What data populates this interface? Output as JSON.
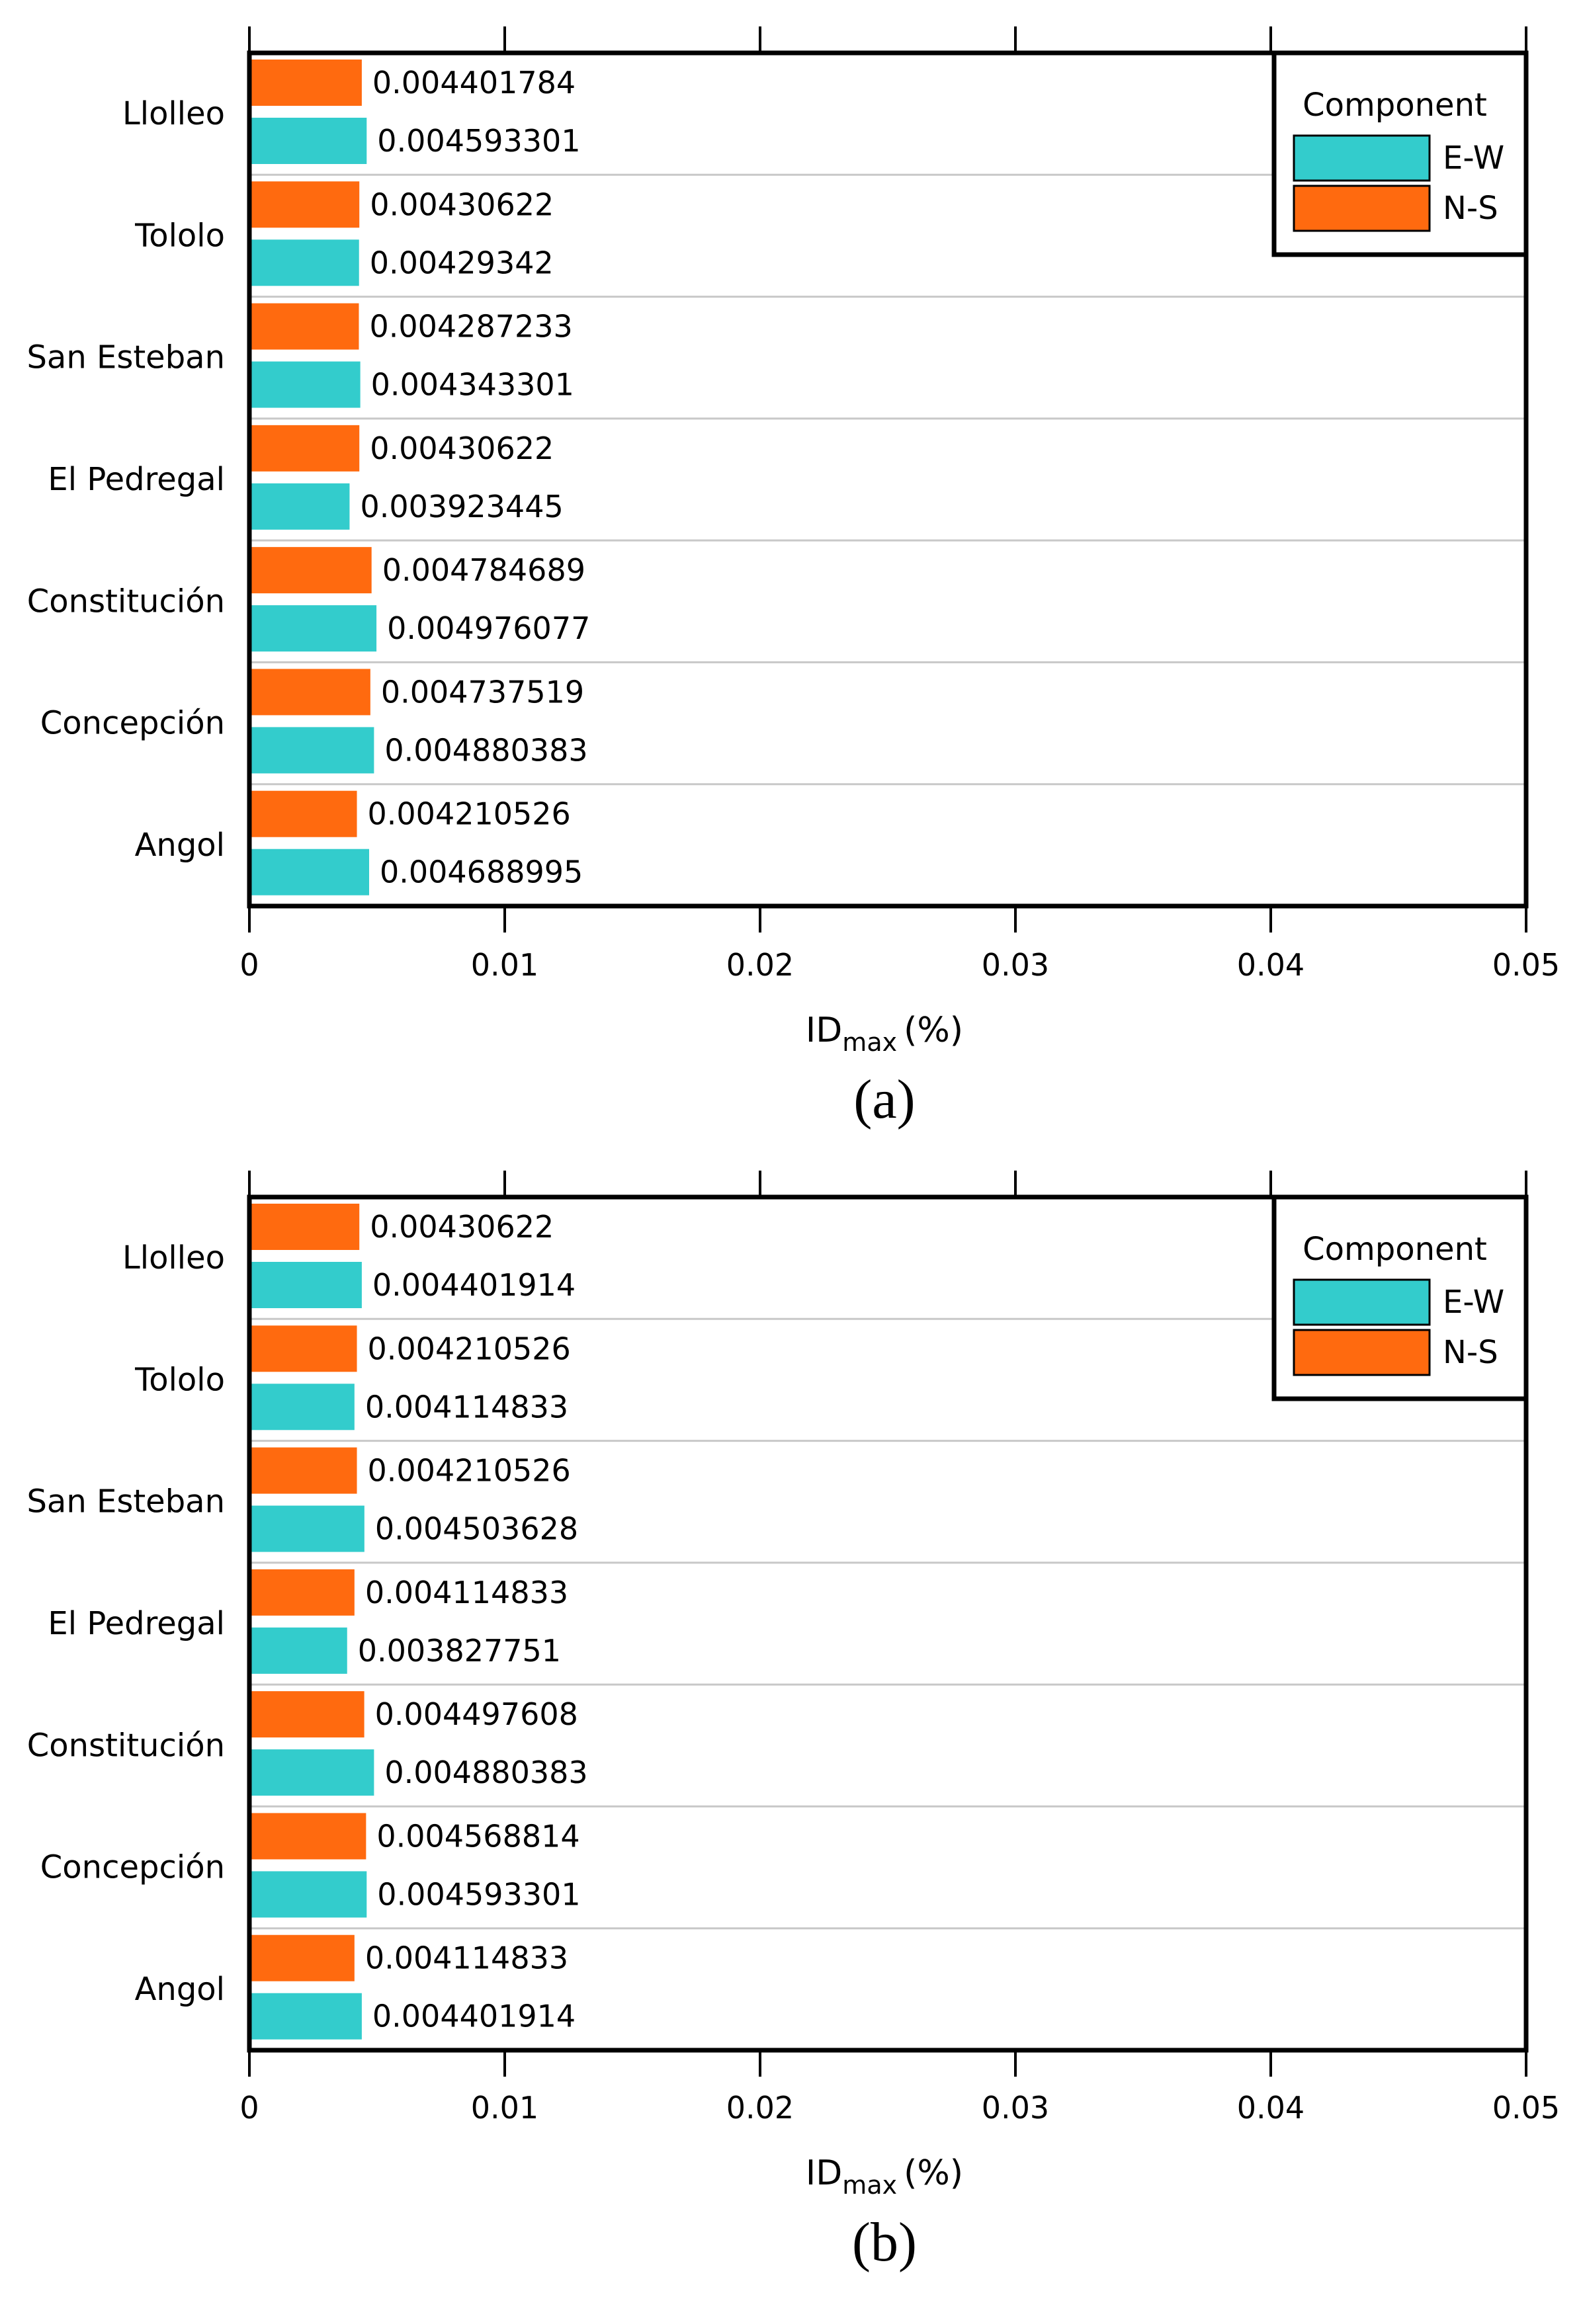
{
  "chart_data": [
    {
      "type": "bar",
      "orientation": "horizontal",
      "panel_label": "(a)",
      "categories": [
        "Llolleo",
        "Tololo",
        "San Esteban",
        "El Pedregal",
        "Constitución",
        "Concepción",
        "Angol"
      ],
      "series": [
        {
          "name": "N-S",
          "color": "#ff6a0f",
          "values": [
            0.004401784,
            0.00430622,
            0.004287233,
            0.00430622,
            0.004784689,
            0.004737519,
            0.004210526
          ],
          "labels": [
            "0.004401784",
            "0.00430622",
            "0.004287233",
            "0.00430622",
            "0.004784689",
            "0.004737519",
            "0.004210526"
          ]
        },
        {
          "name": "E-W",
          "color": "#33cccc",
          "values": [
            0.004593301,
            0.00429342,
            0.004343301,
            0.003923445,
            0.004976077,
            0.004880383,
            0.004688995
          ],
          "labels": [
            "0.004593301",
            "0.00429342",
            "0.004343301",
            "0.003923445",
            "0.004976077",
            "0.004880383",
            "0.004688995"
          ]
        }
      ],
      "xlabel_main": "ID",
      "xlabel_sub": "max",
      "xlabel_unit": "(%)",
      "xlim": [
        0,
        0.05
      ],
      "xticks": [
        0,
        0.01,
        0.02,
        0.03,
        0.04,
        0.05
      ],
      "xtick_labels": [
        "0",
        "0.01",
        "0.02",
        "0.03",
        "0.04",
        "0.05"
      ],
      "legend": {
        "title": "Component",
        "entries": [
          "E-W",
          "N-S"
        ],
        "position": "top-right"
      }
    },
    {
      "type": "bar",
      "orientation": "horizontal",
      "panel_label": "(b)",
      "categories": [
        "Llolleo",
        "Tololo",
        "San Esteban",
        "El Pedregal",
        "Constitución",
        "Concepción",
        "Angol"
      ],
      "series": [
        {
          "name": "N-S",
          "color": "#ff6a0f",
          "values": [
            0.00430622,
            0.004210526,
            0.004210526,
            0.004114833,
            0.004497608,
            0.004568814,
            0.004114833
          ],
          "labels": [
            "0.00430622",
            "0.004210526",
            "0.004210526",
            "0.004114833",
            "0.004497608",
            "0.004568814",
            "0.004114833"
          ]
        },
        {
          "name": "E-W",
          "color": "#33cccc",
          "values": [
            0.004401914,
            0.004114833,
            0.004503628,
            0.003827751,
            0.004880383,
            0.004593301,
            0.004401914
          ],
          "labels": [
            "0.004401914",
            "0.004114833",
            "0.004503628",
            "0.003827751",
            "0.004880383",
            "0.004593301",
            "0.004401914"
          ]
        }
      ],
      "xlabel_main": "ID",
      "xlabel_sub": "max",
      "xlabel_unit": "(%)",
      "xlim": [
        0,
        0.05
      ],
      "xticks": [
        0,
        0.01,
        0.02,
        0.03,
        0.04,
        0.05
      ],
      "xtick_labels": [
        "0",
        "0.01",
        "0.02",
        "0.03",
        "0.04",
        "0.05"
      ],
      "legend": {
        "title": "Component",
        "entries": [
          "E-W",
          "N-S"
        ],
        "position": "top-right"
      }
    }
  ]
}
